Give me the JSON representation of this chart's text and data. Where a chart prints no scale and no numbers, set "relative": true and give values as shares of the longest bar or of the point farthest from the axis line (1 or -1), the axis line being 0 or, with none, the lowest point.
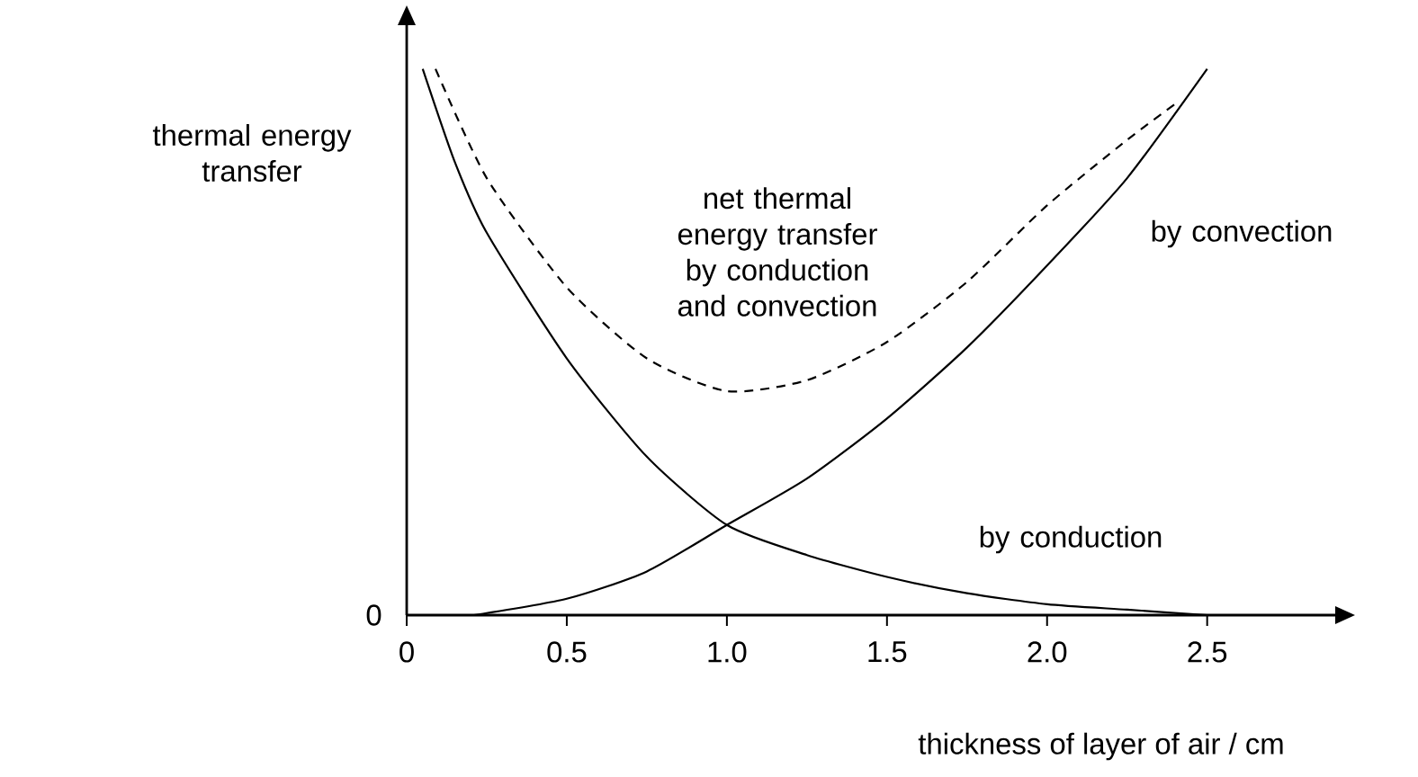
{
  "chart_data": {
    "type": "line",
    "xlabel": "thickness of layer of air / cm",
    "ylabel": "thermal energy transfer",
    "relative": true,
    "xlim": [
      0,
      2.9
    ],
    "xticks": [
      0,
      0.5,
      {
        "value": 1,
        "label": "1.0"
      },
      1.5,
      {
        "value": 2,
        "label": "2.0"
      },
      2.5
    ],
    "marker": "none",
    "annotations": [
      "0"
    ],
    "series": [
      {
        "name": "by conduction",
        "color": "#000000",
        "line_style": "solid",
        "x": [
          0.05,
          0.15,
          0.25,
          0.5,
          0.75,
          1.0,
          1.25,
          1.5,
          1.75,
          2.0,
          2.25,
          2.5
        ],
        "values": [
          1.0,
          0.83,
          0.7,
          0.47,
          0.29,
          0.165,
          0.11,
          0.07,
          0.04,
          0.02,
          0.01,
          0.0
        ]
      },
      {
        "name": "by convection",
        "color": "#000000",
        "line_style": "solid",
        "x": [
          0.21,
          0.5,
          0.75,
          1.0,
          1.25,
          1.5,
          1.75,
          2.0,
          2.25,
          2.5
        ],
        "values": [
          0.0,
          0.03,
          0.08,
          0.165,
          0.25,
          0.36,
          0.49,
          0.64,
          0.8,
          1.0
        ]
      },
      {
        "name": "net thermal energy transfer by conduction and convection",
        "color": "#000000",
        "line_style": "dashed",
        "x": [
          0.09,
          0.25,
          0.5,
          0.75,
          1.0,
          1.25,
          1.5,
          1.75,
          2.0,
          2.25,
          2.41
        ],
        "values": [
          1.0,
          0.8,
          0.6,
          0.47,
          0.41,
          0.43,
          0.5,
          0.61,
          0.75,
          0.87,
          0.94
        ]
      }
    ]
  }
}
